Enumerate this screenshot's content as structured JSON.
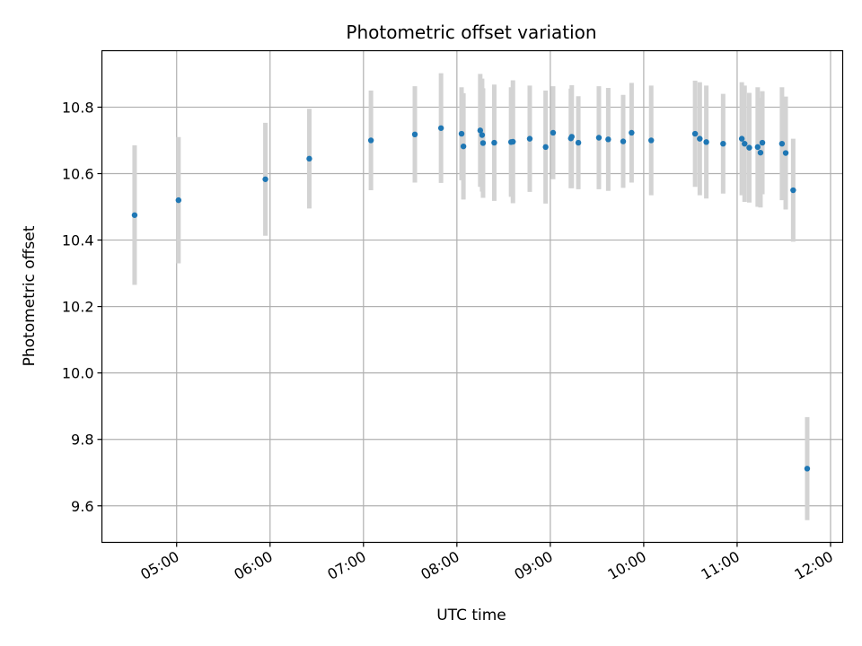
{
  "chart_data": {
    "type": "scatter",
    "title": "Photometric offset variation",
    "xlabel": "UTC time",
    "ylabel": "Photometric offset",
    "x_unit": "UTC hour",
    "xlim": [
      4.2,
      12.13
    ],
    "ylim": [
      9.49,
      10.97
    ],
    "x_ticks": [
      5,
      6,
      7,
      8,
      9,
      10,
      11,
      12
    ],
    "x_tick_labels": [
      "05:00",
      "06:00",
      "07:00",
      "08:00",
      "09:00",
      "10:00",
      "11:00",
      "12:00"
    ],
    "y_ticks": [
      9.6,
      9.8,
      10.0,
      10.2,
      10.4,
      10.6,
      10.8
    ],
    "y_tick_labels": [
      "9.6",
      "9.8",
      "10.0",
      "10.2",
      "10.4",
      "10.6",
      "10.8"
    ],
    "grid": true,
    "colors": {
      "point": "#1f77b4",
      "errorbar": "#d3d3d3",
      "grid": "#b0b0b0"
    },
    "series": [
      {
        "points": [
          {
            "x": 4.55,
            "y": 10.475,
            "err": 0.21
          },
          {
            "x": 5.02,
            "y": 10.52,
            "err": 0.19
          },
          {
            "x": 5.95,
            "y": 10.583,
            "err": 0.17
          },
          {
            "x": 6.42,
            "y": 10.645,
            "err": 0.15
          },
          {
            "x": 7.08,
            "y": 10.7,
            "err": 0.15
          },
          {
            "x": 7.55,
            "y": 10.718,
            "err": 0.145
          },
          {
            "x": 7.83,
            "y": 10.737,
            "err": 0.165
          },
          {
            "x": 8.05,
            "y": 10.72,
            "err": 0.14
          },
          {
            "x": 8.07,
            "y": 10.682,
            "err": 0.16
          },
          {
            "x": 8.25,
            "y": 10.73,
            "err": 0.17
          },
          {
            "x": 8.27,
            "y": 10.716,
            "err": 0.17
          },
          {
            "x": 8.28,
            "y": 10.692,
            "err": 0.165
          },
          {
            "x": 8.4,
            "y": 10.693,
            "err": 0.175
          },
          {
            "x": 8.58,
            "y": 10.695,
            "err": 0.165
          },
          {
            "x": 8.6,
            "y": 10.696,
            "err": 0.185
          },
          {
            "x": 8.78,
            "y": 10.705,
            "err": 0.16
          },
          {
            "x": 8.95,
            "y": 10.68,
            "err": 0.17
          },
          {
            "x": 9.03,
            "y": 10.723,
            "err": 0.14
          },
          {
            "x": 9.22,
            "y": 10.706,
            "err": 0.15
          },
          {
            "x": 9.23,
            "y": 10.711,
            "err": 0.155
          },
          {
            "x": 9.3,
            "y": 10.693,
            "err": 0.14
          },
          {
            "x": 9.52,
            "y": 10.708,
            "err": 0.155
          },
          {
            "x": 9.62,
            "y": 10.703,
            "err": 0.155
          },
          {
            "x": 9.78,
            "y": 10.697,
            "err": 0.14
          },
          {
            "x": 9.87,
            "y": 10.723,
            "err": 0.15
          },
          {
            "x": 10.08,
            "y": 10.7,
            "err": 0.165
          },
          {
            "x": 10.55,
            "y": 10.72,
            "err": 0.16
          },
          {
            "x": 10.6,
            "y": 10.705,
            "err": 0.17
          },
          {
            "x": 10.67,
            "y": 10.695,
            "err": 0.17
          },
          {
            "x": 10.85,
            "y": 10.69,
            "err": 0.15
          },
          {
            "x": 11.05,
            "y": 10.705,
            "err": 0.17
          },
          {
            "x": 11.08,
            "y": 10.69,
            "err": 0.175
          },
          {
            "x": 11.13,
            "y": 10.678,
            "err": 0.165
          },
          {
            "x": 11.22,
            "y": 10.68,
            "err": 0.18
          },
          {
            "x": 11.25,
            "y": 10.663,
            "err": 0.165
          },
          {
            "x": 11.27,
            "y": 10.693,
            "err": 0.155
          },
          {
            "x": 11.48,
            "y": 10.69,
            "err": 0.17
          },
          {
            "x": 11.52,
            "y": 10.662,
            "err": 0.17
          },
          {
            "x": 11.6,
            "y": 10.55,
            "err": 0.155
          },
          {
            "x": 11.75,
            "y": 9.712,
            "err": 0.155
          }
        ]
      }
    ]
  }
}
